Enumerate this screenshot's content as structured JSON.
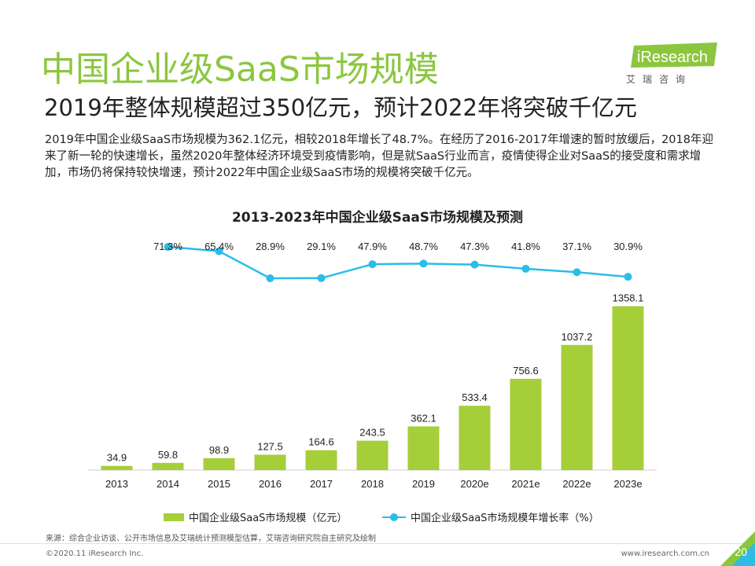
{
  "page": {
    "title": "中国企业级SaaS市场规模",
    "subtitle": "2019年整体规模超过350亿元，预计2022年将突破千亿元",
    "description": "2019年中国企业级SaaS市场规模为362.1亿元，相较2018年增长了48.7%。在经历了2016-2017年增速的暂时放缓后，2018年迎来了新一轮的快速增长，虽然2020年整体经济环境受到疫情影响，但是就SaaS行业而言，疫情使得企业对SaaS的接受度和需求增加，市场仍将保持较快增速，预计2022年中国企业级SaaS市场的规模将突破千亿元。",
    "logo_text": "iResearch",
    "logo_sub": "艾瑞咨询",
    "source": "来源：综合企业访谈、公开市场信息及艾瑞统计预测模型估算，艾瑞咨询研究院自主研究及绘制",
    "copyright": "©2020.11 iResearch Inc.",
    "website": "www.iresearch.com.cn",
    "page_number": "20"
  },
  "colors": {
    "accent_green": "#8cc63f",
    "bar_green": "#a6ce39",
    "line_blue": "#29bde8"
  },
  "chart_data": {
    "type": "bar",
    "title": "2013-2023年中国企业级SaaS市场规模及预测",
    "categories": [
      "2013",
      "2014",
      "2015",
      "2016",
      "2017",
      "2018",
      "2019",
      "2020e",
      "2021e",
      "2022e",
      "2023e"
    ],
    "series": [
      {
        "name": "中国企业级SaaS市场规模（亿元）",
        "type": "bar",
        "values": [
          34.9,
          59.8,
          98.9,
          127.5,
          164.6,
          243.5,
          362.1,
          533.4,
          756.6,
          1037.2,
          1358.1
        ]
      },
      {
        "name": "中国企业级SaaS市场规模年增长率（%）",
        "type": "line",
        "values": [
          null,
          71.3,
          65.4,
          28.9,
          29.1,
          47.9,
          48.7,
          47.3,
          41.8,
          37.1,
          30.9
        ],
        "labels": [
          "",
          "71.3%",
          "65.4%",
          "28.9%",
          "29.1%",
          "47.9%",
          "48.7%",
          "47.3%",
          "41.8%",
          "37.1%",
          "30.9%"
        ]
      }
    ],
    "legend": "bottom"
  }
}
